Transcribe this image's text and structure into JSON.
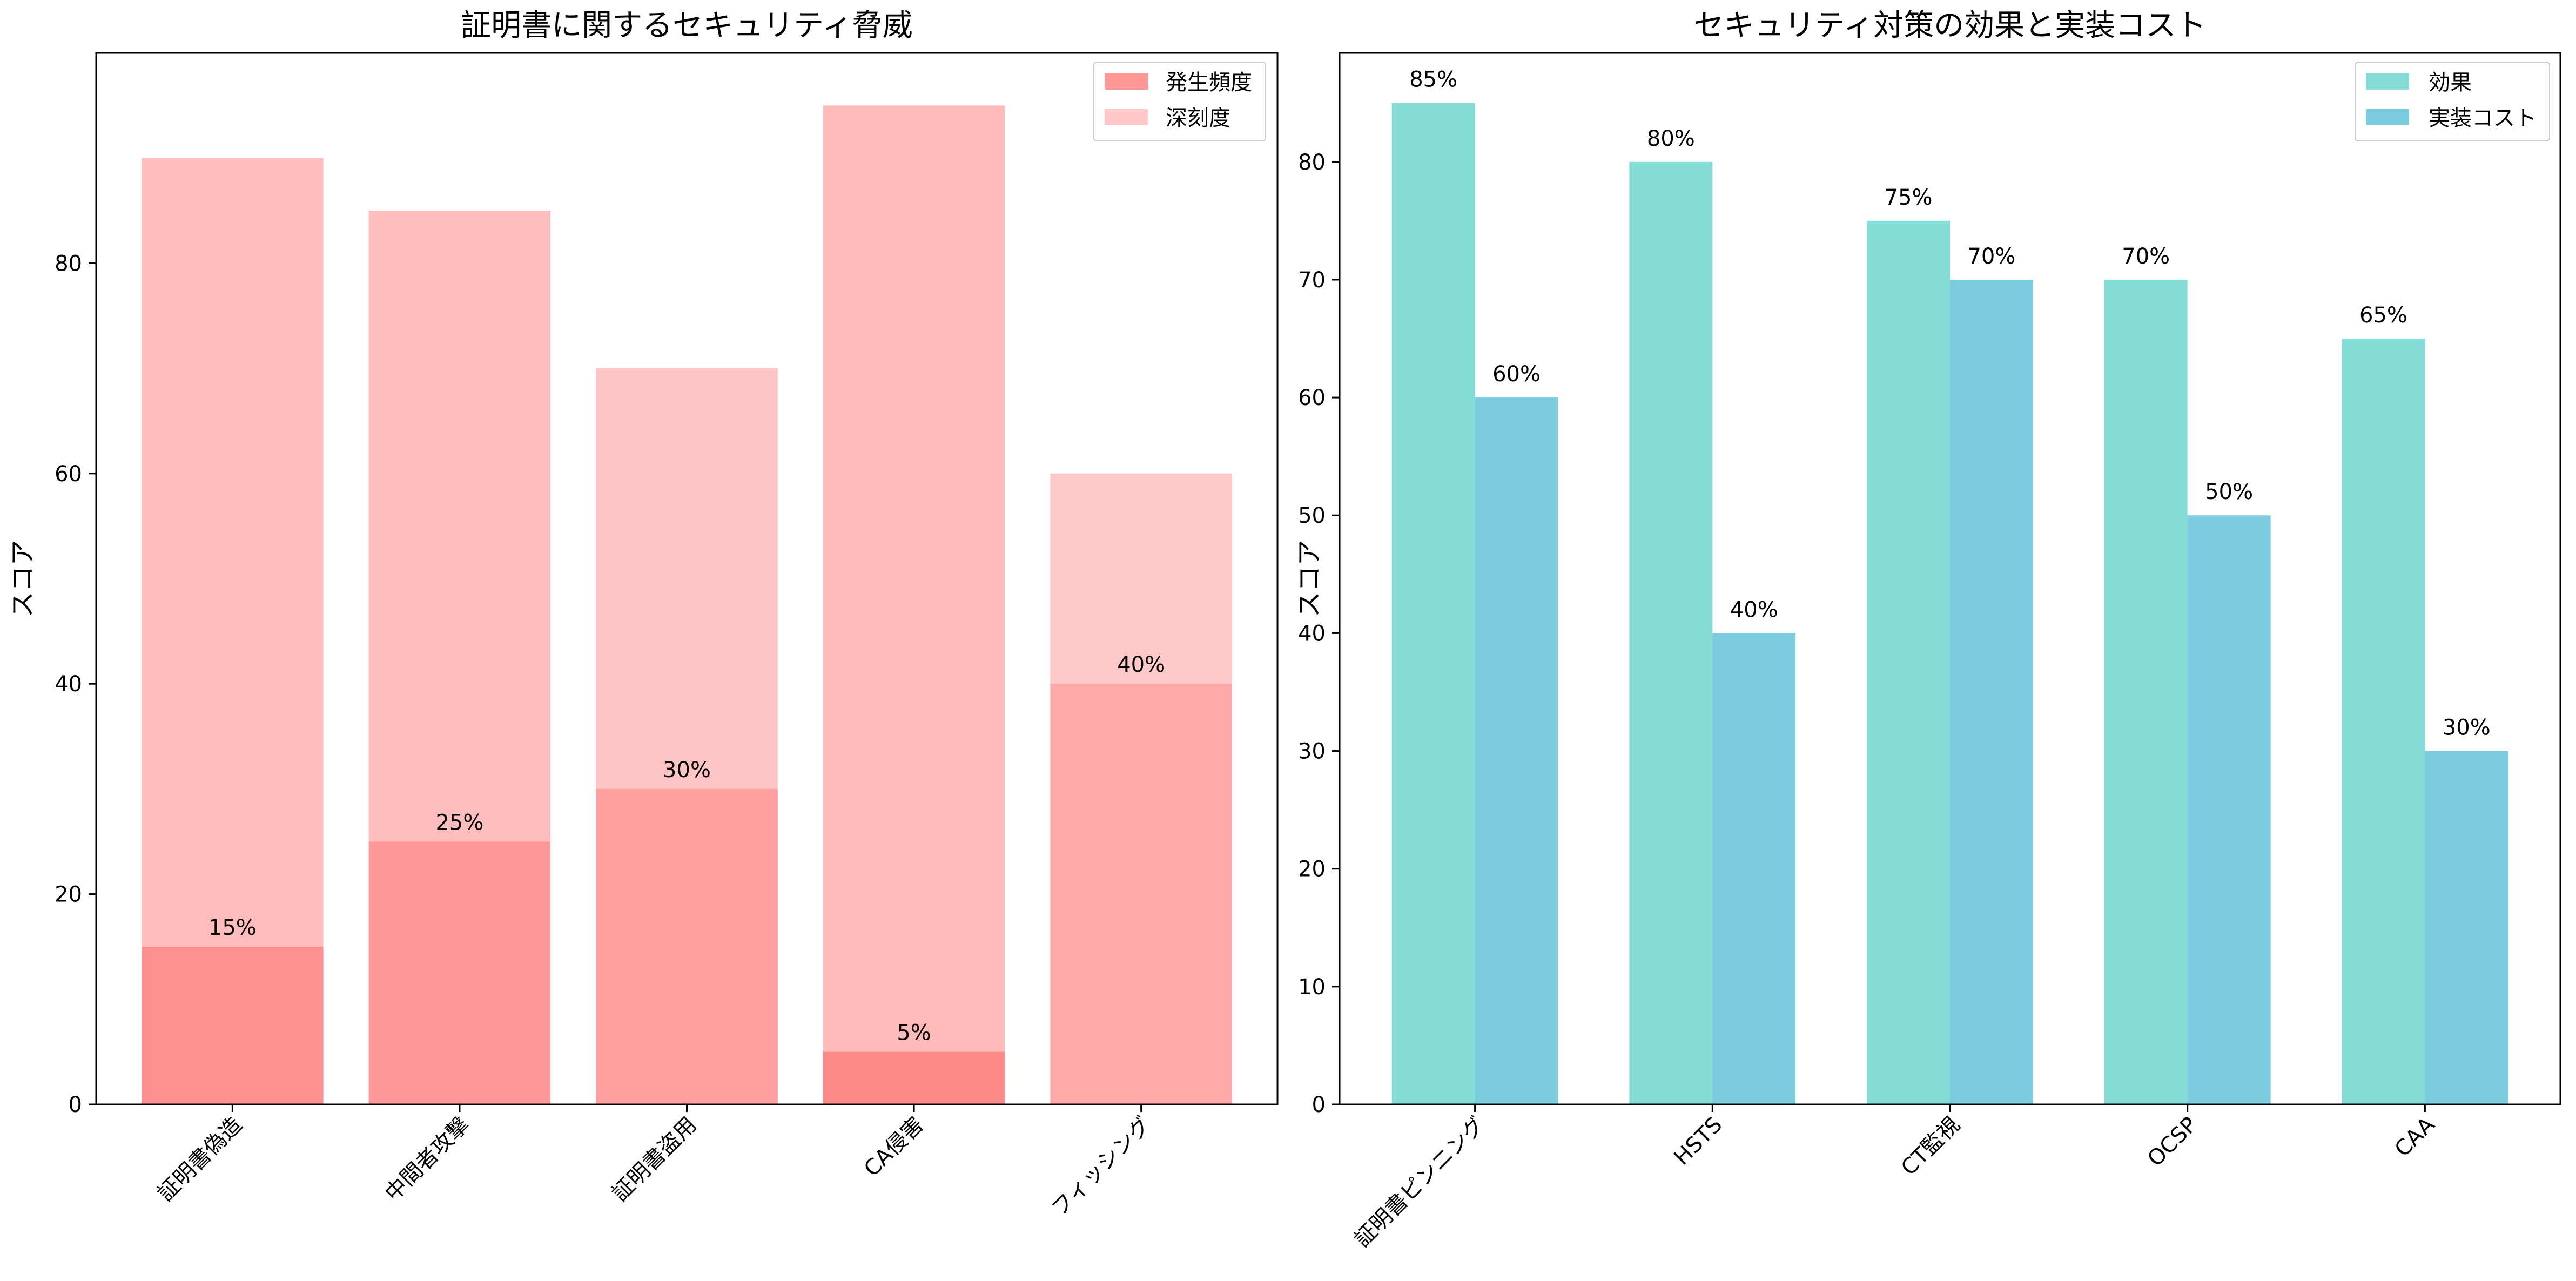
{
  "chart_data": [
    {
      "type": "bar",
      "title": "証明書に関するセキュリティ脅威",
      "xlabel": "",
      "ylabel": "スコア",
      "ylim": [
        0,
        100
      ],
      "yticks": [
        0,
        20,
        40,
        60,
        80
      ],
      "categories": [
        "証明書偽造",
        "中間者攻撃",
        "証明書盗用",
        "CA侵害",
        "フィッシング"
      ],
      "series": [
        {
          "name": "発生頻度",
          "values": [
            15,
            25,
            30,
            5,
            40
          ],
          "color": "#ff6b6b"
        },
        {
          "name": "深刻度",
          "values": [
            90,
            85,
            70,
            95,
            60
          ],
          "color": "#ff9999"
        }
      ],
      "data_labels": [
        "15%",
        "25%",
        "30%",
        "5%",
        "40%"
      ],
      "legend": "top-right",
      "grid": false
    },
    {
      "type": "bar",
      "title": "セキュリティ対策の効果と実装コスト",
      "xlabel": "",
      "ylabel": "スコア",
      "ylim": [
        0,
        90
      ],
      "yticks": [
        0,
        10,
        20,
        30,
        40,
        50,
        60,
        70,
        80
      ],
      "categories": [
        "証明書ピンニング",
        "HSTS",
        "CT監視",
        "OCSP",
        "CAA"
      ],
      "series": [
        {
          "name": "効果",
          "values": [
            85,
            80,
            75,
            70,
            65
          ],
          "color": "#4ecdc4",
          "labels": [
            "85%",
            "80%",
            "75%",
            "70%",
            "65%"
          ]
        },
        {
          "name": "実装コスト",
          "values": [
            60,
            40,
            70,
            50,
            30
          ],
          "color": "#45b7d1",
          "labels": [
            "60%",
            "40%",
            "70%",
            "50%",
            "30%"
          ]
        }
      ],
      "legend": "top-right",
      "grid": false
    }
  ]
}
